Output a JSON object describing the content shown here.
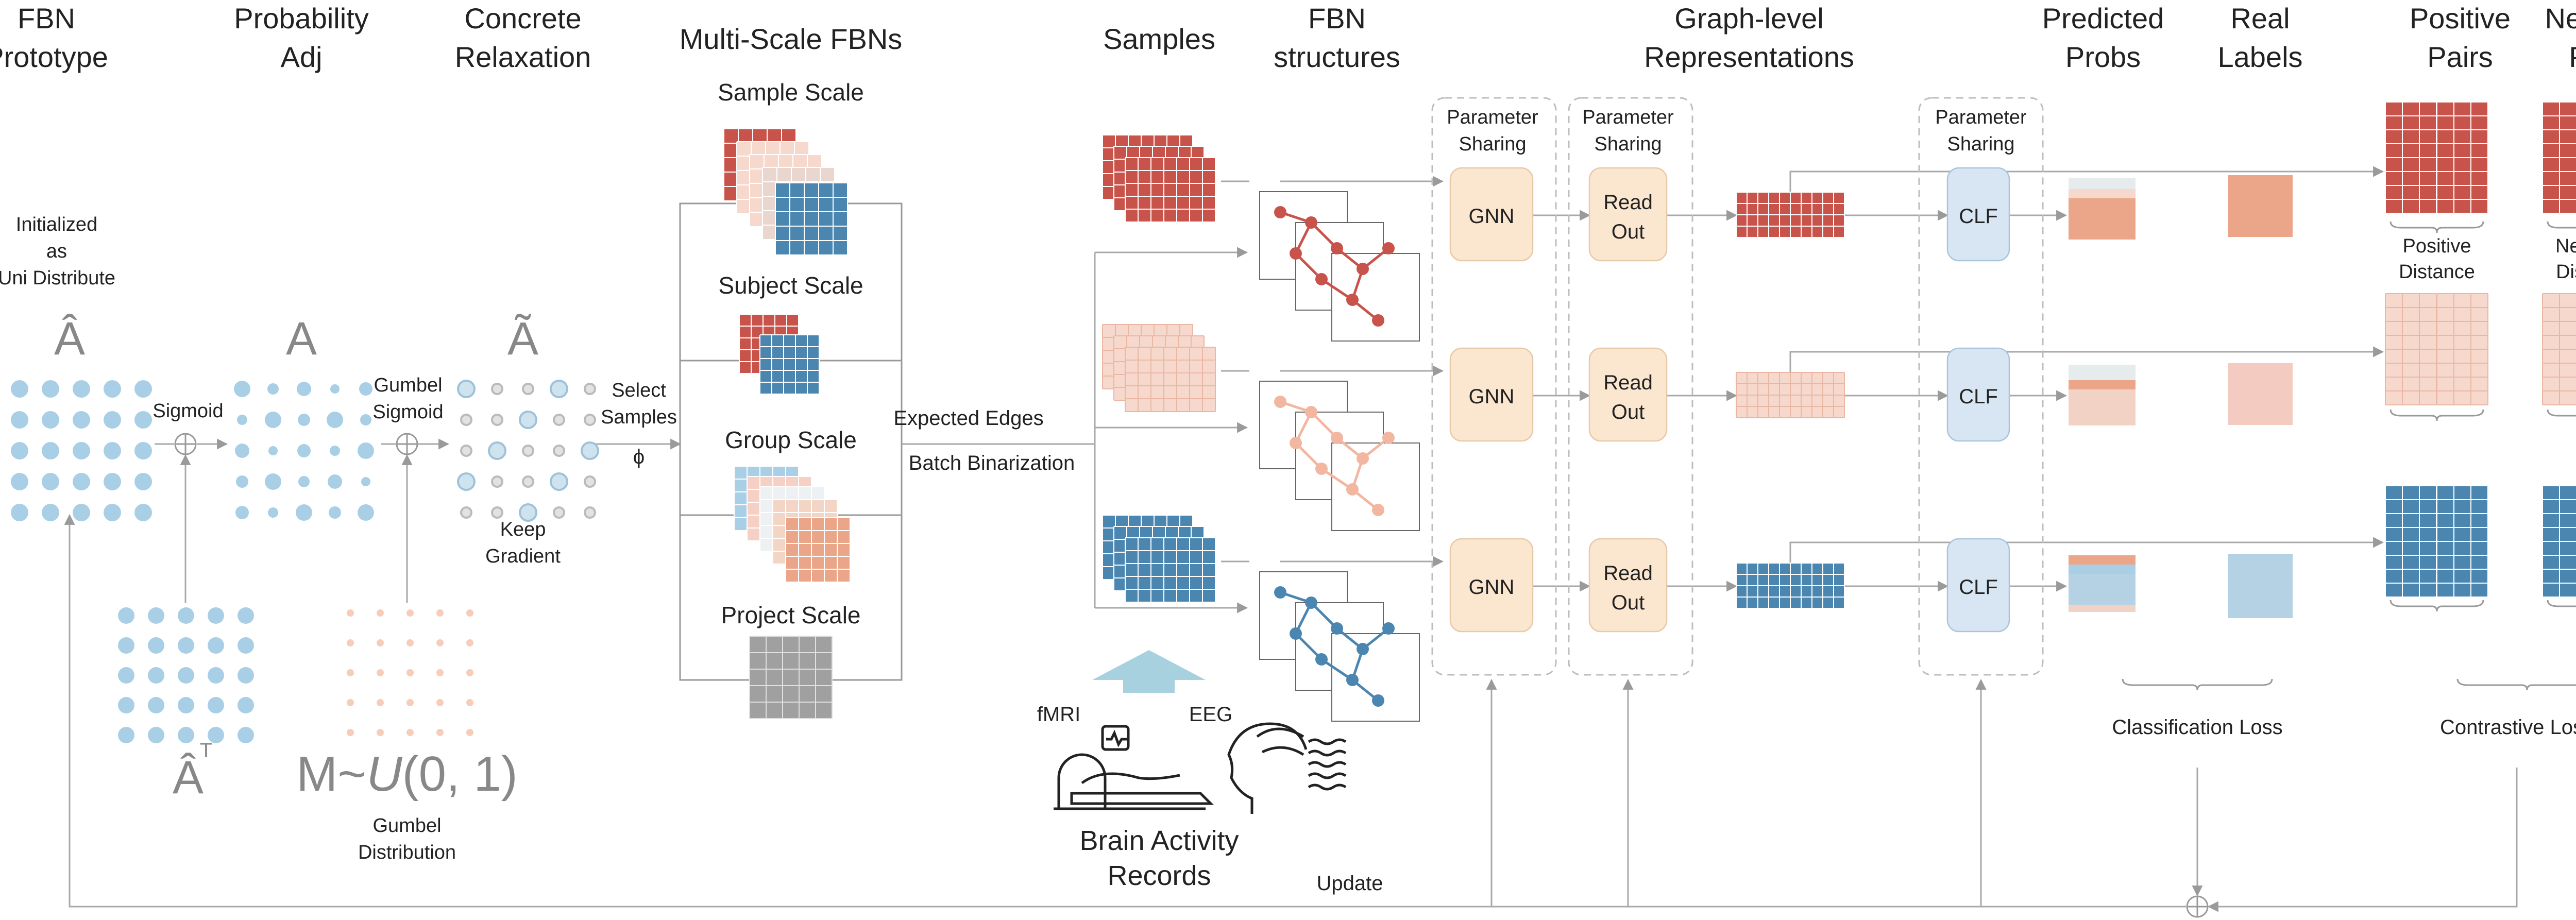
{
  "headers": {
    "fbn_prototype": [
      "FBN",
      "Prototype"
    ],
    "probability_adj": [
      "Probability",
      "Adj"
    ],
    "concrete_relaxation": [
      "Concrete",
      "Relaxation"
    ],
    "multi_scale": "Multi-Scale FBNs",
    "samples": "Samples",
    "fbn_structures": [
      "FBN",
      "structures"
    ],
    "graph_level": [
      "Graph-level",
      "Representations"
    ],
    "predicted_probs": [
      "Predicted",
      "Probs"
    ],
    "real_labels": [
      "Real",
      "Labels"
    ],
    "positive_pairs": [
      "Positive",
      "Pairs"
    ],
    "negative_pairs": [
      "Negative",
      "Pairs"
    ]
  },
  "labels": {
    "initialized": [
      "Initialized",
      "as",
      "Uni Distribute"
    ],
    "a_hat": "Â",
    "a": "A",
    "a_tilde": "Ã",
    "sigmoid": "Sigmoid",
    "gumbel_sigmoid": [
      "Gumbel",
      "Sigmoid"
    ],
    "select_samples": [
      "Select",
      "Samples",
      "ϕ"
    ],
    "keep_gradient": [
      "Keep",
      "Gradient"
    ],
    "a_hat_t": "Â",
    "t_sup": "T",
    "m_uniform_prefix": "M~",
    "m_uniform_u": "U",
    "m_uniform_suffix": "(0, 1)",
    "gumbel_distribution": [
      "Gumbel",
      "Distribution"
    ],
    "sample_scale": "Sample Scale",
    "subject_scale": "Subject Scale",
    "group_scale": "Group Scale",
    "project_scale": "Project Scale",
    "expected_edges": "Expected Edges",
    "batch_binarization": "Batch Binarization",
    "parameter_sharing": [
      "Parameter",
      "Sharing"
    ],
    "gnn": "GNN",
    "read_out": [
      "Read",
      "Out"
    ],
    "clf": "CLF",
    "positive_distance": [
      "Positive",
      "Distance"
    ],
    "negative_distance": [
      "Negative",
      "Distance"
    ],
    "classification_loss": "Classification Loss",
    "contrastive_loss": "Contrastive Loss",
    "fmri": "fMRI",
    "eeg": "EEG",
    "brain_activity": [
      "Brain Activity",
      "Records"
    ],
    "update": "Update"
  },
  "colors": {
    "red": "#c8534a",
    "pink": "#f6d9cc",
    "blue": "#4b86b0",
    "lightblue": "#a9cfe6",
    "salmon": "#eba588",
    "gray": "#9a9a9a",
    "clf_fill": "#d7e6f2",
    "module_fill": "#fbe6cf",
    "text_gray": "#888888"
  }
}
